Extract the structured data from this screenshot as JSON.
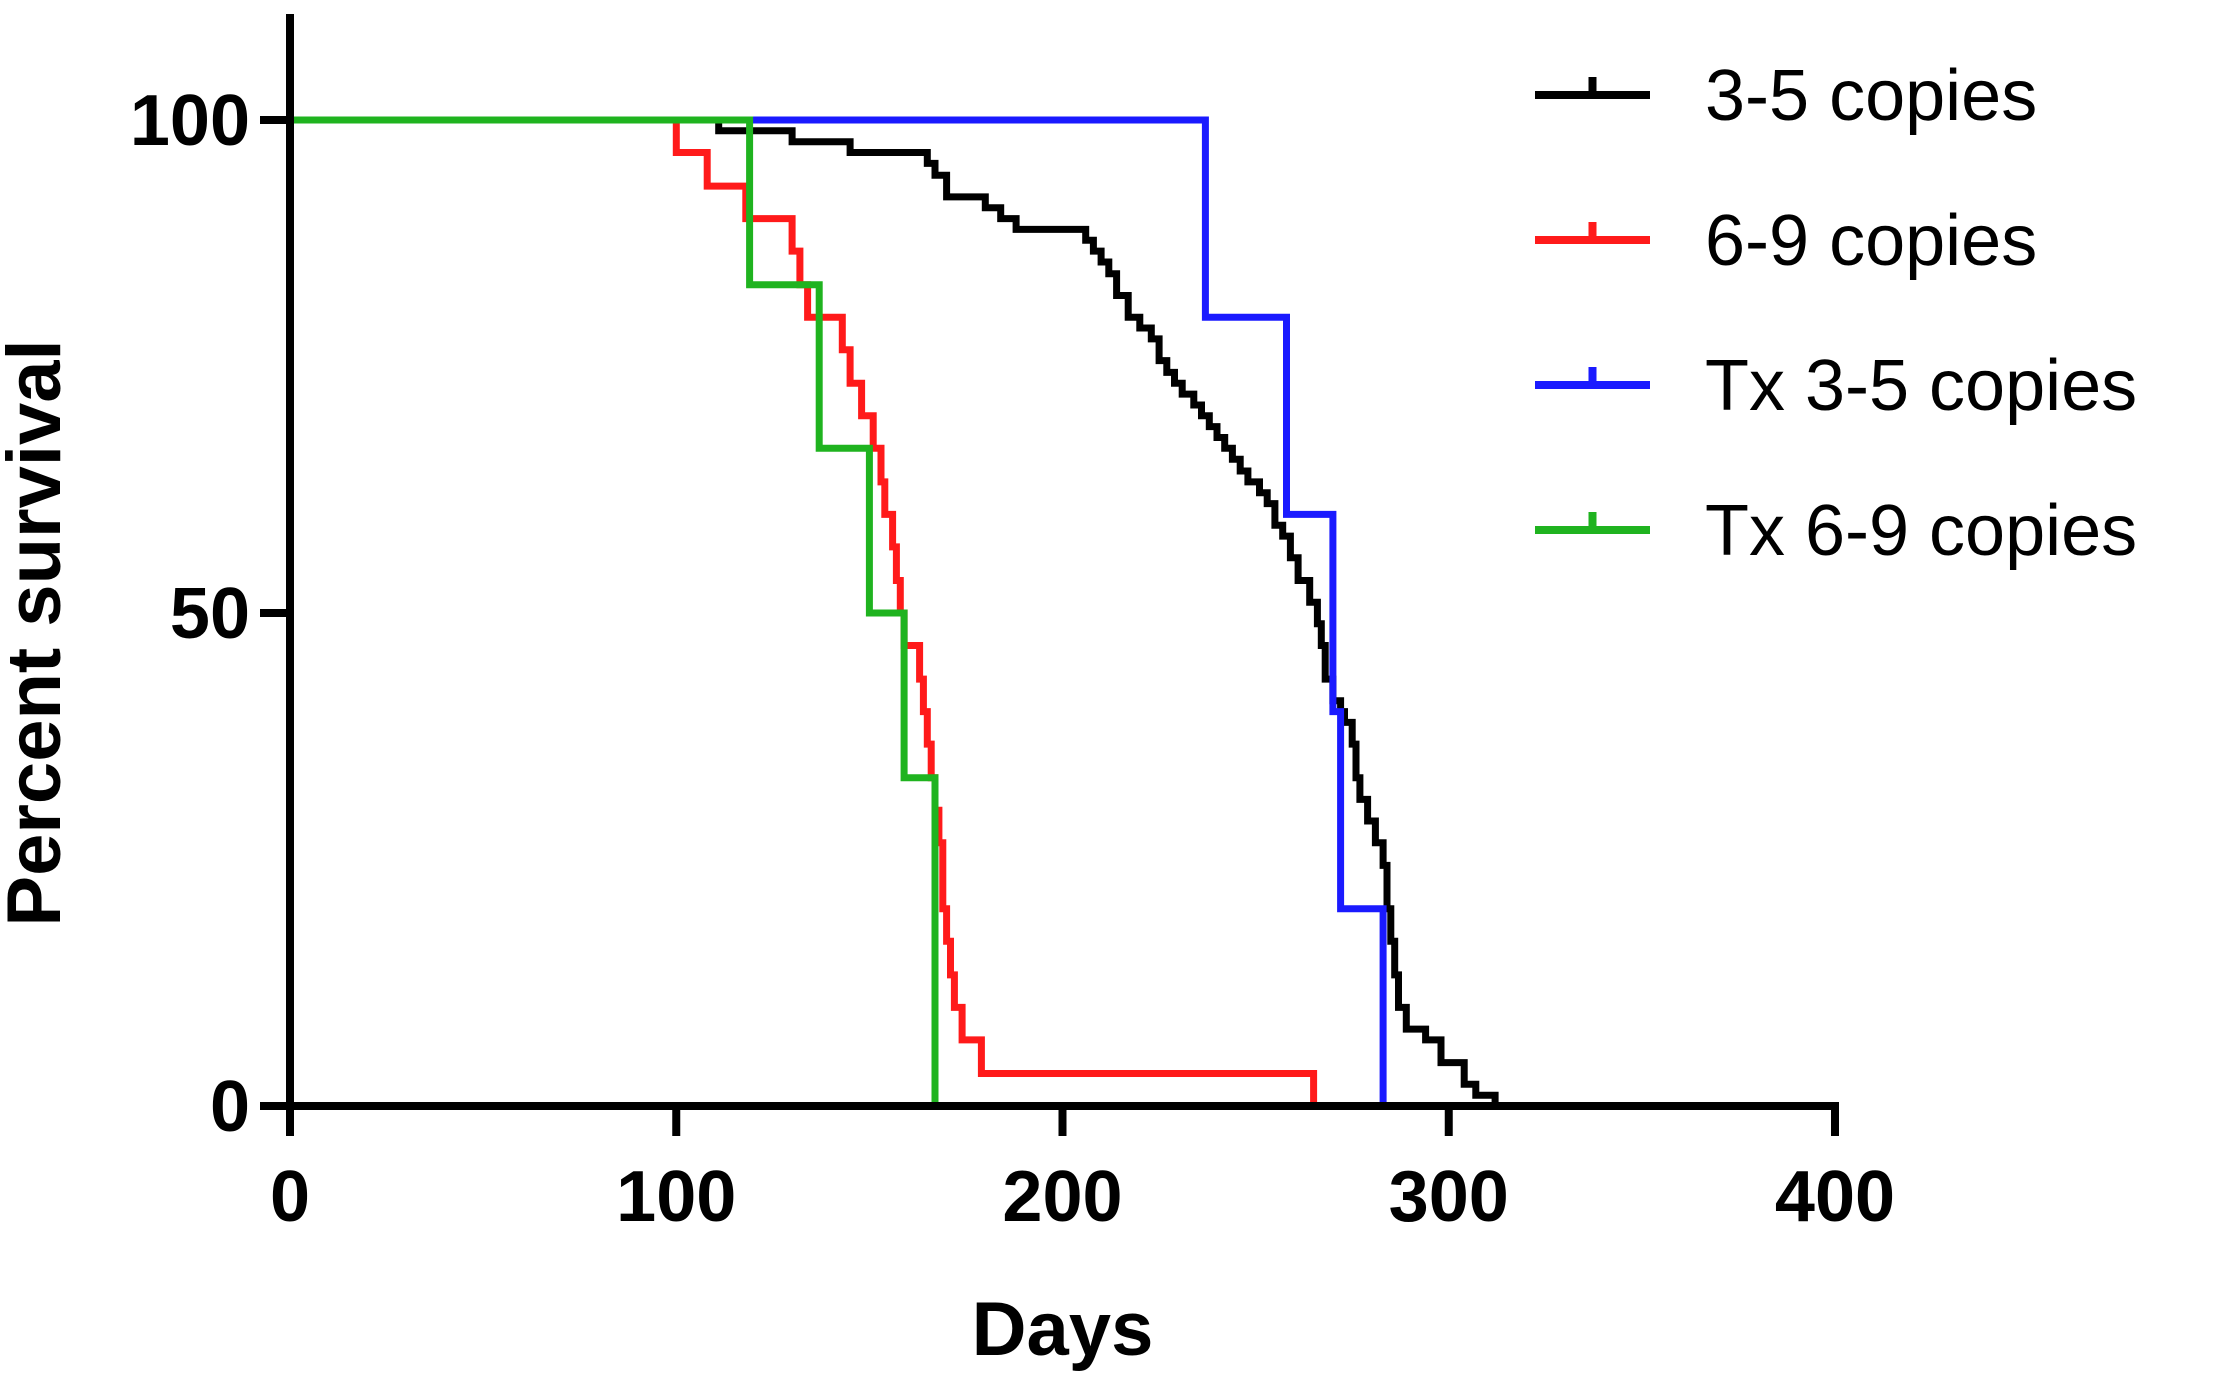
{
  "chart_data": {
    "type": "line",
    "subtype": "kaplan-meier-survival-step",
    "title": "",
    "xlabel": "Days",
    "ylabel": "Percent survival",
    "xlim": [
      0,
      400
    ],
    "ylim": [
      0,
      100
    ],
    "x_ticks": [
      "0",
      "100",
      "200",
      "300",
      "400"
    ],
    "y_ticks": [
      "0",
      "50",
      "100"
    ],
    "grid": false,
    "legend_position": "top-right",
    "series": [
      {
        "name": "3-5 copies",
        "color": "#000000",
        "steps": [
          [
            0,
            100
          ],
          [
            111,
            100
          ],
          [
            111,
            98.9
          ],
          [
            130,
            98.9
          ],
          [
            130,
            97.8
          ],
          [
            145,
            97.8
          ],
          [
            145,
            96.7
          ],
          [
            165,
            96.7
          ],
          [
            165,
            95.6
          ],
          [
            167,
            95.6
          ],
          [
            167,
            94.4
          ],
          [
            170,
            94.4
          ],
          [
            170,
            92.2
          ],
          [
            180,
            92.2
          ],
          [
            180,
            91.1
          ],
          [
            184,
            91.1
          ],
          [
            184,
            90
          ],
          [
            188,
            90
          ],
          [
            188,
            88.9
          ],
          [
            206,
            88.9
          ],
          [
            206,
            87.8
          ],
          [
            208,
            87.8
          ],
          [
            208,
            86.7
          ],
          [
            210,
            86.7
          ],
          [
            210,
            85.6
          ],
          [
            212,
            85.6
          ],
          [
            212,
            84.4
          ],
          [
            214,
            84.4
          ],
          [
            214,
            82.2
          ],
          [
            217,
            82.2
          ],
          [
            217,
            80
          ],
          [
            220,
            80
          ],
          [
            220,
            78.9
          ],
          [
            223,
            78.9
          ],
          [
            223,
            77.8
          ],
          [
            225,
            77.8
          ],
          [
            225,
            75.6
          ],
          [
            227,
            75.6
          ],
          [
            227,
            74.4
          ],
          [
            229,
            74.4
          ],
          [
            229,
            73.3
          ],
          [
            231,
            73.3
          ],
          [
            231,
            72.2
          ],
          [
            234,
            72.2
          ],
          [
            234,
            71.1
          ],
          [
            236,
            71.1
          ],
          [
            236,
            70
          ],
          [
            238,
            70
          ],
          [
            238,
            68.9
          ],
          [
            240,
            68.9
          ],
          [
            240,
            67.8
          ],
          [
            242,
            67.8
          ],
          [
            242,
            66.7
          ],
          [
            244,
            66.7
          ],
          [
            244,
            65.6
          ],
          [
            246,
            65.6
          ],
          [
            246,
            64.4
          ],
          [
            248,
            64.4
          ],
          [
            248,
            63.3
          ],
          [
            251,
            63.3
          ],
          [
            251,
            62.2
          ],
          [
            253,
            62.2
          ],
          [
            253,
            61.1
          ],
          [
            255,
            61.1
          ],
          [
            255,
            58.9
          ],
          [
            257,
            58.9
          ],
          [
            257,
            57.8
          ],
          [
            259,
            57.8
          ],
          [
            259,
            55.6
          ],
          [
            261,
            55.6
          ],
          [
            261,
            53.3
          ],
          [
            264,
            53.3
          ],
          [
            264,
            51.1
          ],
          [
            266,
            51.1
          ],
          [
            266,
            48.9
          ],
          [
            267,
            48.9
          ],
          [
            267,
            46.7
          ],
          [
            268,
            46.7
          ],
          [
            268,
            43.3
          ],
          [
            270,
            43.3
          ],
          [
            270,
            41.1
          ],
          [
            272,
            41.1
          ],
          [
            272,
            40
          ],
          [
            273,
            40
          ],
          [
            273,
            38.9
          ],
          [
            275,
            38.9
          ],
          [
            275,
            36.7
          ],
          [
            276,
            36.7
          ],
          [
            276,
            33.3
          ],
          [
            277,
            33.3
          ],
          [
            277,
            31.1
          ],
          [
            279,
            31.1
          ],
          [
            279,
            28.9
          ],
          [
            281,
            28.9
          ],
          [
            281,
            26.7
          ],
          [
            283,
            26.7
          ],
          [
            283,
            24.4
          ],
          [
            284,
            24.4
          ],
          [
            284,
            20
          ],
          [
            285,
            20
          ],
          [
            285,
            16.7
          ],
          [
            286,
            16.7
          ],
          [
            286,
            13.3
          ],
          [
            287,
            13.3
          ],
          [
            287,
            10
          ],
          [
            289,
            10
          ],
          [
            289,
            7.8
          ],
          [
            294,
            7.8
          ],
          [
            294,
            6.7
          ],
          [
            298,
            6.7
          ],
          [
            298,
            4.4
          ],
          [
            304,
            4.4
          ],
          [
            304,
            2.2
          ],
          [
            307,
            2.2
          ],
          [
            307,
            1.1
          ],
          [
            312,
            1.1
          ],
          [
            312,
            0
          ]
        ]
      },
      {
        "name": "6-9 copies",
        "color": "#ff1a1a",
        "steps": [
          [
            0,
            100
          ],
          [
            100,
            100
          ],
          [
            100,
            96.7
          ],
          [
            108,
            96.7
          ],
          [
            108,
            93.3
          ],
          [
            118,
            93.3
          ],
          [
            118,
            90
          ],
          [
            130,
            90
          ],
          [
            130,
            86.7
          ],
          [
            132,
            86.7
          ],
          [
            132,
            83.3
          ],
          [
            134,
            83.3
          ],
          [
            134,
            80
          ],
          [
            143,
            80
          ],
          [
            143,
            76.7
          ],
          [
            145,
            76.7
          ],
          [
            145,
            73.3
          ],
          [
            148,
            73.3
          ],
          [
            148,
            70
          ],
          [
            151,
            70
          ],
          [
            151,
            66.7
          ],
          [
            153,
            66.7
          ],
          [
            153,
            63.3
          ],
          [
            154,
            63.3
          ],
          [
            154,
            60
          ],
          [
            156,
            60
          ],
          [
            156,
            56.7
          ],
          [
            157,
            56.7
          ],
          [
            157,
            53.3
          ],
          [
            158,
            53.3
          ],
          [
            158,
            50
          ],
          [
            159,
            50
          ],
          [
            159,
            46.7
          ],
          [
            163,
            46.7
          ],
          [
            163,
            43.3
          ],
          [
            164,
            43.3
          ],
          [
            164,
            40
          ],
          [
            165,
            40
          ],
          [
            165,
            36.7
          ],
          [
            166,
            36.7
          ],
          [
            166,
            33.3
          ],
          [
            167,
            33.3
          ],
          [
            167,
            30
          ],
          [
            168,
            30
          ],
          [
            168,
            26.7
          ],
          [
            169,
            26.7
          ],
          [
            169,
            20
          ],
          [
            170,
            20
          ],
          [
            170,
            16.7
          ],
          [
            171,
            16.7
          ],
          [
            171,
            13.3
          ],
          [
            172,
            13.3
          ],
          [
            172,
            10
          ],
          [
            174,
            10
          ],
          [
            174,
            6.7
          ],
          [
            179,
            6.7
          ],
          [
            179,
            3.3
          ],
          [
            265,
            3.3
          ],
          [
            265,
            0
          ]
        ]
      },
      {
        "name": "Tx 3-5 copies",
        "color": "#1a1aff",
        "steps": [
          [
            0,
            100
          ],
          [
            237,
            100
          ],
          [
            237,
            80
          ],
          [
            258,
            80
          ],
          [
            258,
            60
          ],
          [
            270,
            60
          ],
          [
            270,
            40
          ],
          [
            272,
            40
          ],
          [
            272,
            20
          ],
          [
            283,
            20
          ],
          [
            283,
            0
          ]
        ]
      },
      {
        "name": "Tx 6-9 copies",
        "color": "#1fb31f",
        "steps": [
          [
            0,
            100
          ],
          [
            119,
            100
          ],
          [
            119,
            83.3
          ],
          [
            137,
            83.3
          ],
          [
            137,
            66.7
          ],
          [
            150,
            66.7
          ],
          [
            150,
            50
          ],
          [
            159,
            50
          ],
          [
            159,
            33.3
          ],
          [
            167,
            33.3
          ],
          [
            167,
            0
          ]
        ]
      }
    ]
  }
}
